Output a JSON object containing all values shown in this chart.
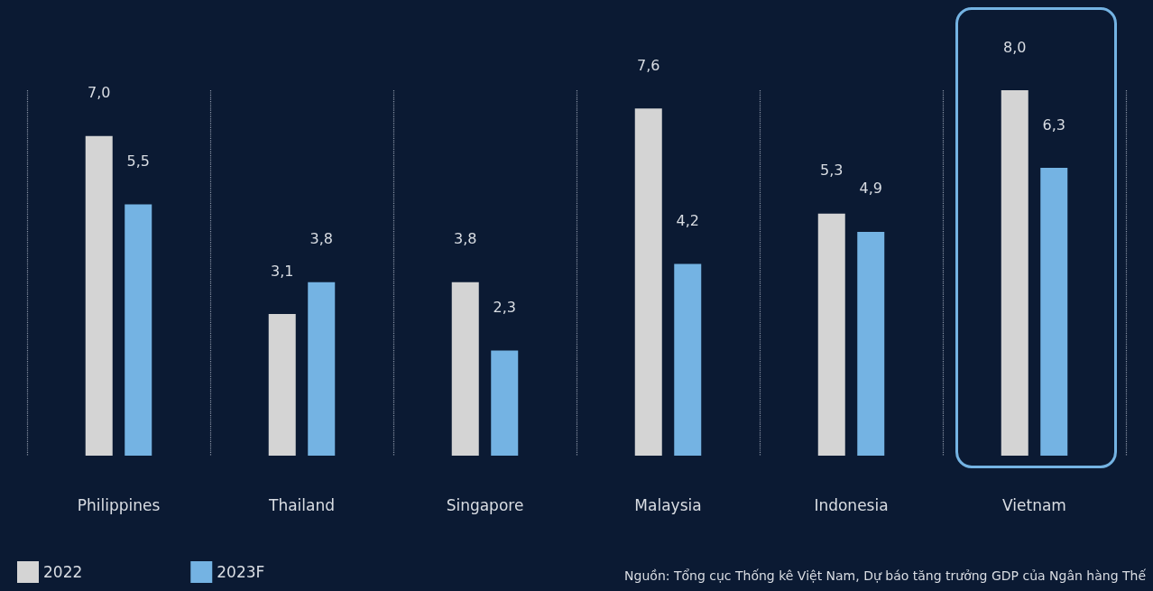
{
  "chart_data": {
    "type": "bar",
    "categories": [
      "Philippines",
      "Thailand",
      "Singapore",
      "Malaysia",
      "Indonesia",
      "Vietnam"
    ],
    "series": [
      {
        "name": "2022",
        "color": "#d4d4d4",
        "values": [
          7.0,
          3.1,
          3.8,
          7.6,
          5.3,
          8.0
        ],
        "value_labels": [
          "7,0",
          "3,1",
          "3,8",
          "7,6",
          "5,3",
          "8,0"
        ]
      },
      {
        "name": "2023F",
        "color": "#74b3e3",
        "values": [
          5.5,
          3.8,
          2.3,
          4.2,
          4.9,
          6.3
        ],
        "value_labels": [
          "5,5",
          "3,8",
          "2,3",
          "4,2",
          "4,9",
          "6,3"
        ]
      }
    ],
    "grid": "x",
    "legend": "bottom left",
    "annotations": [
      "Nguồn: Tổng cục Thống kê Việt Nam, Dự báo tăng trưởng GDP của Ngân hàng Thế"
    ]
  }
}
